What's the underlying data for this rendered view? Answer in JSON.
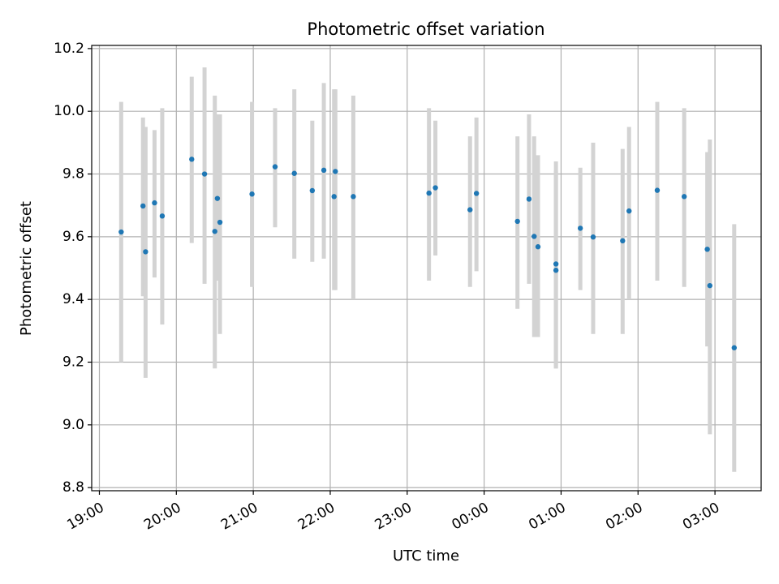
{
  "chart_data": {
    "type": "scatter",
    "title": "Photometric offset variation",
    "xlabel": "UTC time",
    "ylabel": "Photometric offset",
    "grid": true,
    "legend": false,
    "x_range_hours": [
      18.9,
      27.6
    ],
    "ylim": [
      8.79,
      10.21
    ],
    "xticks": [
      {
        "hour": 19,
        "label": "19:00"
      },
      {
        "hour": 20,
        "label": "20:00"
      },
      {
        "hour": 21,
        "label": "21:00"
      },
      {
        "hour": 22,
        "label": "22:00"
      },
      {
        "hour": 23,
        "label": "23:00"
      },
      {
        "hour": 24,
        "label": "00:00"
      },
      {
        "hour": 25,
        "label": "01:00"
      },
      {
        "hour": 26,
        "label": "02:00"
      },
      {
        "hour": 27,
        "label": "03:00"
      }
    ],
    "yticks": [
      {
        "value": 8.8,
        "label": "8.8"
      },
      {
        "value": 9.0,
        "label": "9.0"
      },
      {
        "value": 9.2,
        "label": "9.2"
      },
      {
        "value": 9.4,
        "label": "9.4"
      },
      {
        "value": 9.6,
        "label": "9.6"
      },
      {
        "value": 9.8,
        "label": "9.8"
      },
      {
        "value": 10.0,
        "label": "10.0"
      },
      {
        "value": 10.2,
        "label": "10.2"
      }
    ],
    "marker_color": "#1f77b4",
    "errorbar_color": "#d3d3d3",
    "points": [
      {
        "t": "19:17",
        "y": 9.615,
        "lo": 9.2,
        "hi": 10.03
      },
      {
        "t": "19:34",
        "y": 9.698,
        "lo": 9.41,
        "hi": 9.98
      },
      {
        "t": "19:36",
        "y": 9.552,
        "lo": 9.15,
        "hi": 9.95
      },
      {
        "t": "19:43",
        "y": 9.708,
        "lo": 9.47,
        "hi": 9.94
      },
      {
        "t": "19:49",
        "y": 9.666,
        "lo": 9.32,
        "hi": 10.01
      },
      {
        "t": "20:12",
        "y": 9.847,
        "lo": 9.58,
        "hi": 10.11
      },
      {
        "t": "20:22",
        "y": 9.8,
        "lo": 9.45,
        "hi": 10.14
      },
      {
        "t": "20:30",
        "y": 9.617,
        "lo": 9.18,
        "hi": 10.05
      },
      {
        "t": "20:32",
        "y": 9.722,
        "lo": 9.46,
        "hi": 9.99
      },
      {
        "t": "20:34",
        "y": 9.646,
        "lo": 9.29,
        "hi": 9.99
      },
      {
        "t": "20:59",
        "y": 9.736,
        "lo": 9.44,
        "hi": 10.03
      },
      {
        "t": "21:17",
        "y": 9.823,
        "lo": 9.63,
        "hi": 10.01
      },
      {
        "t": "21:32",
        "y": 9.802,
        "lo": 9.53,
        "hi": 10.07
      },
      {
        "t": "21:46",
        "y": 9.747,
        "lo": 9.52,
        "hi": 9.97
      },
      {
        "t": "21:55",
        "y": 9.812,
        "lo": 9.53,
        "hi": 10.09
      },
      {
        "t": "22:03",
        "y": 9.728,
        "lo": 9.43,
        "hi": 10.07
      },
      {
        "t": "22:04",
        "y": 9.808,
        "lo": 9.43,
        "hi": 10.07
      },
      {
        "t": "22:18",
        "y": 9.728,
        "lo": 9.4,
        "hi": 10.05
      },
      {
        "t": "23:17",
        "y": 9.739,
        "lo": 9.46,
        "hi": 10.01
      },
      {
        "t": "23:22",
        "y": 9.756,
        "lo": 9.54,
        "hi": 9.97
      },
      {
        "t": "23:49",
        "y": 9.686,
        "lo": 9.44,
        "hi": 9.92
      },
      {
        "t": "23:54",
        "y": 9.738,
        "lo": 9.49,
        "hi": 9.98
      },
      {
        "t": "00:26",
        "y": 9.649,
        "lo": 9.37,
        "hi": 9.92
      },
      {
        "t": "00:35",
        "y": 9.72,
        "lo": 9.45,
        "hi": 9.99
      },
      {
        "t": "00:39",
        "y": 9.601,
        "lo": 9.28,
        "hi": 9.92
      },
      {
        "t": "00:42",
        "y": 9.568,
        "lo": 9.28,
        "hi": 9.86
      },
      {
        "t": "00:56",
        "y": 9.513,
        "lo": 9.18,
        "hi": 9.84
      },
      {
        "t": "00:56",
        "y": 9.493,
        "lo": 9.18,
        "hi": 9.81
      },
      {
        "t": "01:15",
        "y": 9.627,
        "lo": 9.43,
        "hi": 9.82
      },
      {
        "t": "01:25",
        "y": 9.599,
        "lo": 9.29,
        "hi": 9.9
      },
      {
        "t": "01:48",
        "y": 9.587,
        "lo": 9.29,
        "hi": 9.88
      },
      {
        "t": "01:53",
        "y": 9.682,
        "lo": 9.4,
        "hi": 9.95
      },
      {
        "t": "02:15",
        "y": 9.748,
        "lo": 9.46,
        "hi": 10.03
      },
      {
        "t": "02:36",
        "y": 9.728,
        "lo": 9.44,
        "hi": 10.01
      },
      {
        "t": "02:54",
        "y": 9.56,
        "lo": 9.25,
        "hi": 9.87
      },
      {
        "t": "02:56",
        "y": 9.444,
        "lo": 8.97,
        "hi": 9.91
      },
      {
        "t": "03:15",
        "y": 9.246,
        "lo": 8.85,
        "hi": 9.64
      }
    ]
  }
}
